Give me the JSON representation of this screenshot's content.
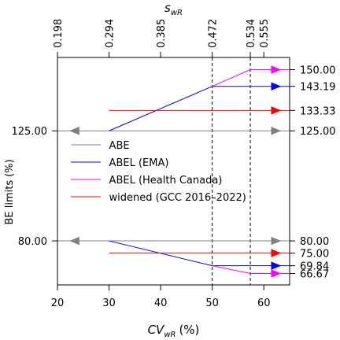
{
  "chart_data": {
    "type": "line",
    "xlabel": "CV",
    "xlabel_sub": "wR",
    "xlabel_unit": "(%)",
    "ylabel": "BE limits (%)",
    "top_axis_label": "s",
    "top_axis_label_sub": "wR",
    "xlim": [
      20,
      65
    ],
    "ylim": [
      62,
      155
    ],
    "x_ticks": [
      "20",
      "30",
      "40",
      "50",
      "60"
    ],
    "y_ticks_left": [
      "80.00",
      "125.00"
    ],
    "y_ticks_right": [
      "150.00",
      "143.19",
      "133.33",
      "125.00",
      "80.00",
      "75.00",
      "69.84",
      "66.67"
    ],
    "top_ticks": [
      "0.198",
      "0.294",
      "0.385",
      "0.472",
      "0.534",
      "0.555"
    ],
    "top_ticks_cv": [
      20,
      30,
      40,
      50,
      57.38,
      60
    ],
    "vlines_dashed_at": [
      50,
      57.38
    ],
    "grid": false,
    "legend_position": "center-left",
    "series": [
      {
        "name": "ABE",
        "color": "#808080",
        "upper": {
          "x": [
            20,
            65
          ],
          "y": [
            125.0,
            125.0
          ]
        },
        "lower": {
          "x": [
            20,
            65
          ],
          "y": [
            80.0,
            80.0
          ]
        }
      },
      {
        "name": "ABEL (EMA)",
        "color": "#0000ff",
        "upper": {
          "x": [
            30,
            50,
            65
          ],
          "y": [
            125.0,
            143.19,
            143.19
          ]
        },
        "lower": {
          "x": [
            30,
            50,
            65
          ],
          "y": [
            80.0,
            69.84,
            69.84
          ]
        }
      },
      {
        "name": "ABEL (Health Canada)",
        "color": "#ff00ff",
        "upper": {
          "x": [
            50,
            57.38,
            65
          ],
          "y": [
            143.19,
            150.0,
            150.0
          ]
        },
        "lower": {
          "x": [
            50,
            57.38,
            65
          ],
          "y": [
            69.84,
            66.67,
            66.67
          ]
        }
      },
      {
        "name": "widened (GCC 2016–2022)",
        "color": "#ff0000",
        "upper": {
          "x": [
            30,
            65
          ],
          "y": [
            133.33,
            133.33
          ]
        },
        "lower": {
          "x": [
            30,
            65
          ],
          "y": [
            75.0,
            75.0
          ]
        }
      }
    ]
  }
}
